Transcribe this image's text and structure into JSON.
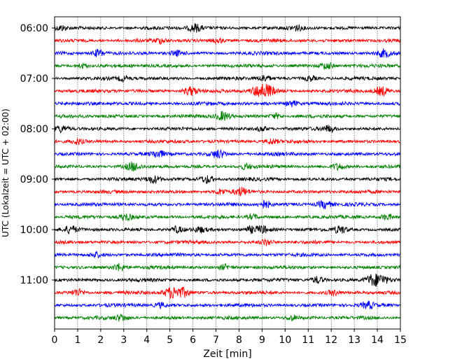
{
  "chart_data": {
    "type": "line",
    "title": "",
    "xlabel": "Zeit  [min]",
    "ylabel": "UTC (Lokalzeit = UTC + 02:00)",
    "xlim": [
      0,
      15
    ],
    "x_ticks": [
      0,
      1,
      2,
      3,
      4,
      5,
      6,
      7,
      8,
      9,
      10,
      11,
      12,
      13,
      14,
      15
    ],
    "x_tick_labels": [
      "0",
      "1",
      "2",
      "3",
      "4",
      "5",
      "6",
      "7",
      "8",
      "9",
      "10",
      "11",
      "12",
      "13",
      "14",
      "15"
    ],
    "y_tick_labels": [
      "06:00",
      "07:00",
      "08:00",
      "09:00",
      "10:00",
      "11:00"
    ],
    "y_tick_rows": [
      0,
      4,
      8,
      12,
      16,
      20
    ],
    "grid": "vertical dotted",
    "row_colors": [
      "#000000",
      "#ff0000",
      "#0000ff",
      "#008000"
    ],
    "row_count": 24,
    "rows": [
      {
        "start": "06:00",
        "color": "#000000",
        "events": [
          [
            0.3,
            1.0
          ],
          [
            6.1,
            1.6
          ],
          [
            10.5,
            1.0
          ]
        ]
      },
      {
        "start": "06:15",
        "color": "#ff0000",
        "events": [
          [
            4.6,
            1.0
          ],
          [
            7.1,
            1.0
          ]
        ]
      },
      {
        "start": "06:30",
        "color": "#0000ff",
        "events": [
          [
            1.9,
            1.5
          ],
          [
            5.3,
            1.0
          ],
          [
            14.3,
            1.4
          ]
        ]
      },
      {
        "start": "06:45",
        "color": "#008000",
        "events": [
          [
            1.2,
            1.0
          ],
          [
            11.8,
            1.3
          ]
        ]
      },
      {
        "start": "07:00",
        "color": "#000000",
        "events": [
          [
            3.0,
            1.0
          ],
          [
            9.1,
            1.3
          ],
          [
            11.1,
            1.0
          ]
        ]
      },
      {
        "start": "07:15",
        "color": "#ff0000",
        "events": [
          [
            5.9,
            1.8
          ],
          [
            8.9,
            2.5
          ],
          [
            9.3,
            1.8
          ],
          [
            14.2,
            1.8
          ]
        ]
      },
      {
        "start": "07:30",
        "color": "#0000ff",
        "events": [
          [
            10.3,
            1.2
          ]
        ]
      },
      {
        "start": "07:45",
        "color": "#008000",
        "events": [
          [
            7.3,
            1.8
          ],
          [
            9.6,
            1.0
          ]
        ]
      },
      {
        "start": "08:00",
        "color": "#000000",
        "events": [
          [
            0.3,
            1.2
          ],
          [
            9.0,
            1.0
          ],
          [
            11.9,
            1.3
          ]
        ]
      },
      {
        "start": "08:15",
        "color": "#ff0000",
        "events": [
          [
            1.0,
            1.0
          ],
          [
            9.4,
            1.0
          ]
        ]
      },
      {
        "start": "08:30",
        "color": "#0000ff",
        "events": [
          [
            4.5,
            1.3
          ],
          [
            7.1,
            1.7
          ]
        ]
      },
      {
        "start": "08:45",
        "color": "#008000",
        "events": [
          [
            3.4,
            1.6
          ],
          [
            8.3,
            1.0
          ],
          [
            12.3,
            1.2
          ]
        ]
      },
      {
        "start": "09:00",
        "color": "#000000",
        "events": [
          [
            4.3,
            1.6
          ],
          [
            6.6,
            1.6
          ]
        ]
      },
      {
        "start": "09:15",
        "color": "#ff0000",
        "events": [
          [
            7.2,
            1.0
          ],
          [
            8.1,
            1.5
          ]
        ]
      },
      {
        "start": "09:30",
        "color": "#0000ff",
        "events": [
          [
            9.1,
            1.6
          ],
          [
            11.7,
            1.6
          ]
        ]
      },
      {
        "start": "09:45",
        "color": "#008000",
        "events": [
          [
            3.1,
            1.4
          ],
          [
            8.6,
            1.0
          ],
          [
            14.4,
            1.2
          ]
        ]
      },
      {
        "start": "10:00",
        "color": "#000000",
        "events": [
          [
            0.7,
            1.4
          ],
          [
            5.3,
            1.2
          ],
          [
            6.3,
            1.0
          ],
          [
            8.5,
            1.2
          ],
          [
            9.0,
            1.5
          ],
          [
            12.4,
            1.4
          ]
        ]
      },
      {
        "start": "10:15",
        "color": "#ff0000",
        "events": [
          [
            9.2,
            1.2
          ]
        ]
      },
      {
        "start": "10:30",
        "color": "#0000ff",
        "events": [
          [
            1.8,
            1.0
          ]
        ]
      },
      {
        "start": "10:45",
        "color": "#008000",
        "events": [
          [
            2.8,
            1.6
          ],
          [
            7.4,
            1.0
          ]
        ]
      },
      {
        "start": "11:00",
        "color": "#000000",
        "events": [
          [
            11.4,
            1.4
          ],
          [
            13.8,
            2.2
          ],
          [
            14.2,
            1.6
          ]
        ]
      },
      {
        "start": "11:15",
        "color": "#ff0000",
        "events": [
          [
            1.0,
            1.4
          ],
          [
            5.1,
            2.4
          ],
          [
            5.6,
            1.6
          ],
          [
            12.1,
            1.0
          ]
        ]
      },
      {
        "start": "11:30",
        "color": "#0000ff",
        "events": [
          [
            4.6,
            1.0
          ],
          [
            13.6,
            1.3
          ]
        ]
      },
      {
        "start": "11:45",
        "color": "#008000",
        "events": [
          [
            2.9,
            1.2
          ],
          [
            10.3,
            1.0
          ]
        ]
      }
    ]
  }
}
